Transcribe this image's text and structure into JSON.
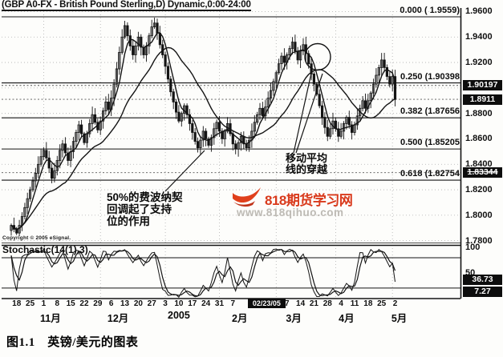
{
  "window": {
    "title": "(GBP A0-FX - British Pound Sterling,D) Dynamic,0:00-24:00"
  },
  "copyright": "Copyright © 2005 eSignal.",
  "caption": "图1.1　英镑/美元的图表",
  "colors": {
    "ink": "#141414",
    "grid": "#b0b0b0",
    "marker_bg": "#0d0d0d",
    "brand_red": "#d93a1c",
    "watermark_gray": "#bdbab4"
  },
  "annotations": {
    "fib_note": "50%的费波纳契\n回调起了支持\n位的作用",
    "ma_note": "移动平均\n线的穿越"
  },
  "watermark": {
    "brand": "818期货学习网",
    "url": "www.818qihuo.com",
    "logo_icon": "red-swoosh"
  },
  "price_axis": {
    "ticks": [
      {
        "text": "1.9600",
        "value": 1.96
      },
      {
        "text": "1.9400",
        "value": 1.94
      },
      {
        "text": "1.9200",
        "value": 1.92
      },
      {
        "text": "1.8800",
        "value": 1.88
      },
      {
        "text": "1.8600",
        "value": 1.86
      },
      {
        "text": "1.8400",
        "value": 1.84
      },
      {
        "text": "1.8200",
        "value": 1.82
      },
      {
        "text": "1.8000",
        "value": 1.8
      },
      {
        "text": "1.7800",
        "value": 1.78
      }
    ],
    "markers": [
      {
        "text": "1.90197",
        "value": 1.90197,
        "strike": false
      },
      {
        "text": "1.8911",
        "value": 1.8911,
        "strike": false
      },
      {
        "text": "1.83344",
        "value": 1.83344,
        "strike": true
      }
    ],
    "gridline_values": [
      1.96,
      1.94,
      1.92,
      1.9,
      1.88,
      1.86,
      1.84,
      1.82,
      1.8,
      1.78
    ]
  },
  "fibonacci": [
    {
      "text": "0.000 ( 1.9559)",
      "value": 1.9559
    },
    {
      "text": "0.250 (1.90398",
      "value": 1.90398
    },
    {
      "text": "0.382 (1.87656",
      "value": 1.87656
    },
    {
      "text": "0.500 (1.85205",
      "value": 1.85205
    },
    {
      "text": "0.618 (1.82754",
      "value": 1.82754
    }
  ],
  "indicator_panel": {
    "label": "Stochastic(14(1),3)",
    "axis_labels": [
      {
        "text": "100",
        "value": 100
      },
      {
        "text": "50",
        "value": 50
      }
    ],
    "markers": [
      {
        "text": "36.73",
        "value": 36.73
      },
      {
        "text": "7.27",
        "value": 7.27
      }
    ],
    "upper_band": 80,
    "lower_band": 20
  },
  "x_axis": {
    "ticks": [
      {
        "label": "18",
        "i": 2
      },
      {
        "label": "25",
        "i": 7
      },
      {
        "label": "1",
        "i": 12
      },
      {
        "label": "8",
        "i": 17
      },
      {
        "label": "15",
        "i": 22
      },
      {
        "label": "22",
        "i": 27
      },
      {
        "label": "29",
        "i": 32
      },
      {
        "label": "6",
        "i": 37
      },
      {
        "label": "13",
        "i": 42
      },
      {
        "label": "20",
        "i": 47
      },
      {
        "label": "27",
        "i": 52
      },
      {
        "label": "3",
        "i": 57
      },
      {
        "label": "10",
        "i": 62
      },
      {
        "label": "17",
        "i": 67
      },
      {
        "label": "24",
        "i": 72
      },
      {
        "label": "31",
        "i": 77
      },
      {
        "label": "7",
        "i": 82
      },
      {
        "label": "7",
        "i": 102
      },
      {
        "label": "14",
        "i": 107
      },
      {
        "label": "21",
        "i": 112
      },
      {
        "label": "28",
        "i": 117
      },
      {
        "label": "4",
        "i": 122
      },
      {
        "label": "11",
        "i": 127
      },
      {
        "label": "18",
        "i": 132
      },
      {
        "label": "25",
        "i": 137
      },
      {
        "label": "2",
        "i": 142
      }
    ],
    "months": [
      {
        "label": "11月",
        "i": 14.5
      },
      {
        "label": "12月",
        "i": 39.5
      },
      {
        "label": "2005",
        "i": 62
      },
      {
        "label": "2月",
        "i": 84.5
      },
      {
        "label": "3月",
        "i": 104.5
      },
      {
        "label": "4月",
        "i": 124
      },
      {
        "label": "5月",
        "i": 143.5
      }
    ],
    "date_marker": {
      "text": "02/23/05",
      "i": 87.5
    },
    "month_grid_i": [
      12,
      33,
      57,
      77,
      98,
      120,
      141
    ]
  },
  "chart_data": {
    "type": "candlestick",
    "symbol": "GBP A0-FX",
    "name": "British Pound Sterling",
    "interval": "D",
    "session": "0:00-24:00",
    "ylim": [
      1.78,
      1.96
    ],
    "y_tick_step": 0.02,
    "last_price": 1.8911,
    "fib_levels": {
      "0.000": 1.9559,
      "0.250": 1.90398,
      "0.382": 1.87656,
      "0.500": 1.85205,
      "0.618": 1.82754
    },
    "moving_averages": [
      {
        "name": "fast",
        "period": 5
      },
      {
        "name": "slow",
        "period": 21
      }
    ],
    "oscillator": {
      "name": "Stochastic",
      "k_period": 14,
      "slowing": 1,
      "d_period": 3,
      "upper": 80,
      "lower": 20,
      "last_values": [
        36.73,
        7.27
      ]
    },
    "closes": [
      1.792,
      1.789,
      1.786,
      1.792,
      1.799,
      1.806,
      1.813,
      1.82,
      1.827,
      1.833,
      1.84,
      1.846,
      1.851,
      1.845,
      1.837,
      1.829,
      1.835,
      1.843,
      1.851,
      1.856,
      1.849,
      1.843,
      1.85,
      1.858,
      1.865,
      1.871,
      1.864,
      1.857,
      1.864,
      1.872,
      1.879,
      1.873,
      1.867,
      1.874,
      1.882,
      1.889,
      1.883,
      1.892,
      1.903,
      1.915,
      1.928,
      1.94,
      1.949,
      1.941,
      1.933,
      1.926,
      1.933,
      1.94,
      1.932,
      1.926,
      1.933,
      1.941,
      1.948,
      1.951,
      1.943,
      1.934,
      1.926,
      1.917,
      1.907,
      1.897,
      1.889,
      1.881,
      1.874,
      1.88,
      1.886,
      1.879,
      1.872,
      1.865,
      1.858,
      1.853,
      1.859,
      1.866,
      1.86,
      1.855,
      1.861,
      1.868,
      1.873,
      1.866,
      1.86,
      1.866,
      1.872,
      1.864,
      1.856,
      1.852,
      1.857,
      1.862,
      1.856,
      1.853,
      1.859,
      1.866,
      1.873,
      1.879,
      1.884,
      1.878,
      1.885,
      1.892,
      1.898,
      1.905,
      1.912,
      1.919,
      1.925,
      1.92,
      1.926,
      1.931,
      1.936,
      1.929,
      1.922,
      1.929,
      1.934,
      1.927,
      1.919,
      1.911,
      1.903,
      1.895,
      1.886,
      1.877,
      1.869,
      1.862,
      1.868,
      1.874,
      1.868,
      1.862,
      1.866,
      1.872,
      1.877,
      1.871,
      1.865,
      1.871,
      1.878,
      1.884,
      1.89,
      1.884,
      1.89,
      1.896,
      1.903,
      1.91,
      1.916,
      1.922,
      1.916,
      1.909,
      1.903,
      1.909,
      1.891
    ]
  }
}
